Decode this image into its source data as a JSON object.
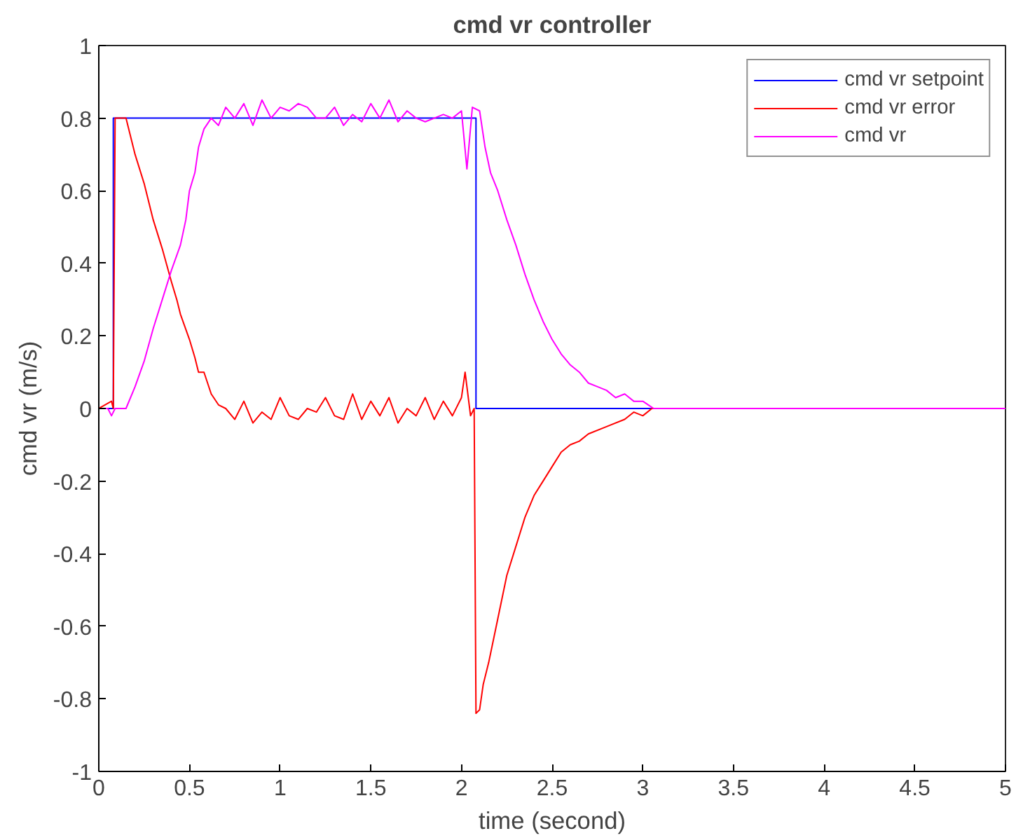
{
  "chart_data": {
    "type": "line",
    "title": "cmd vr controller",
    "xlabel": "time (second)",
    "ylabel": "cmd vr (m/s)",
    "xlim": [
      0,
      5
    ],
    "ylim": [
      -1,
      1
    ],
    "xticks": [
      0,
      0.5,
      1,
      1.5,
      2,
      2.5,
      3,
      3.5,
      4,
      4.5,
      5
    ],
    "yticks": [
      -1,
      -0.8,
      -0.6,
      -0.4,
      -0.2,
      0,
      0.2,
      0.4,
      0.6,
      0.8,
      1
    ],
    "grid": false,
    "legend": "top right",
    "line_style": "solid",
    "marker": "none",
    "series": [
      {
        "name": "cmd vr setpoint",
        "color": "#0000ff",
        "x": [
          0,
          0.08,
          0.08,
          2.08,
          2.08,
          5
        ],
        "values": [
          0,
          0,
          0.8,
          0.8,
          0,
          0
        ]
      },
      {
        "name": "cmd vr error",
        "color": "#ff0000",
        "x": [
          0,
          0.07,
          0.08,
          0.09,
          0.15,
          0.2,
          0.25,
          0.3,
          0.35,
          0.4,
          0.43,
          0.45,
          0.5,
          0.53,
          0.55,
          0.58,
          0.62,
          0.66,
          0.7,
          0.75,
          0.8,
          0.85,
          0.9,
          0.95,
          1.0,
          1.05,
          1.1,
          1.15,
          1.2,
          1.25,
          1.3,
          1.35,
          1.4,
          1.45,
          1.5,
          1.55,
          1.6,
          1.65,
          1.7,
          1.75,
          1.8,
          1.85,
          1.9,
          1.95,
          2.0,
          2.02,
          2.05,
          2.07,
          2.08,
          2.1,
          2.12,
          2.15,
          2.2,
          2.25,
          2.3,
          2.35,
          2.4,
          2.45,
          2.5,
          2.55,
          2.6,
          2.65,
          2.7,
          2.8,
          2.9,
          2.95,
          3.0,
          3.05,
          3.1,
          5
        ],
        "values": [
          0,
          0.02,
          0,
          0.8,
          0.8,
          0.7,
          0.62,
          0.52,
          0.44,
          0.35,
          0.3,
          0.26,
          0.19,
          0.14,
          0.1,
          0.1,
          0.04,
          0.01,
          0.0,
          -0.03,
          0.02,
          -0.04,
          -0.01,
          -0.03,
          0.03,
          -0.02,
          -0.03,
          0.0,
          -0.01,
          0.03,
          -0.02,
          -0.03,
          0.04,
          -0.03,
          0.02,
          -0.02,
          0.03,
          -0.04,
          0.0,
          -0.02,
          0.03,
          -0.03,
          0.02,
          -0.02,
          0.03,
          0.1,
          -0.02,
          0.0,
          -0.84,
          -0.83,
          -0.76,
          -0.7,
          -0.58,
          -0.46,
          -0.38,
          -0.3,
          -0.24,
          -0.2,
          -0.16,
          -0.12,
          -0.1,
          -0.09,
          -0.07,
          -0.05,
          -0.03,
          -0.01,
          -0.02,
          0,
          0,
          0
        ]
      },
      {
        "name": "cmd vr",
        "color": "#ff00ff",
        "x": [
          0,
          0.05,
          0.07,
          0.09,
          0.15,
          0.2,
          0.25,
          0.3,
          0.35,
          0.4,
          0.45,
          0.48,
          0.5,
          0.53,
          0.55,
          0.58,
          0.62,
          0.66,
          0.7,
          0.75,
          0.8,
          0.85,
          0.9,
          0.95,
          1.0,
          1.05,
          1.1,
          1.15,
          1.2,
          1.25,
          1.3,
          1.35,
          1.4,
          1.45,
          1.5,
          1.55,
          1.6,
          1.65,
          1.7,
          1.75,
          1.8,
          1.85,
          1.9,
          1.95,
          2.0,
          2.03,
          2.06,
          2.1,
          2.13,
          2.16,
          2.2,
          2.25,
          2.3,
          2.35,
          2.4,
          2.45,
          2.5,
          2.55,
          2.6,
          2.65,
          2.7,
          2.75,
          2.8,
          2.85,
          2.9,
          2.95,
          3.0,
          3.03,
          3.06,
          3.1,
          5
        ],
        "values": [
          0,
          0,
          -0.02,
          0,
          0,
          0.06,
          0.13,
          0.22,
          0.3,
          0.38,
          0.45,
          0.52,
          0.6,
          0.65,
          0.72,
          0.77,
          0.8,
          0.78,
          0.83,
          0.8,
          0.84,
          0.78,
          0.85,
          0.8,
          0.83,
          0.82,
          0.84,
          0.83,
          0.8,
          0.8,
          0.83,
          0.78,
          0.81,
          0.79,
          0.84,
          0.8,
          0.85,
          0.79,
          0.82,
          0.8,
          0.79,
          0.8,
          0.81,
          0.8,
          0.82,
          0.66,
          0.83,
          0.82,
          0.72,
          0.65,
          0.6,
          0.52,
          0.45,
          0.37,
          0.3,
          0.24,
          0.19,
          0.15,
          0.12,
          0.1,
          0.07,
          0.06,
          0.05,
          0.03,
          0.04,
          0.02,
          0.02,
          0.01,
          0,
          0,
          0
        ]
      }
    ]
  }
}
